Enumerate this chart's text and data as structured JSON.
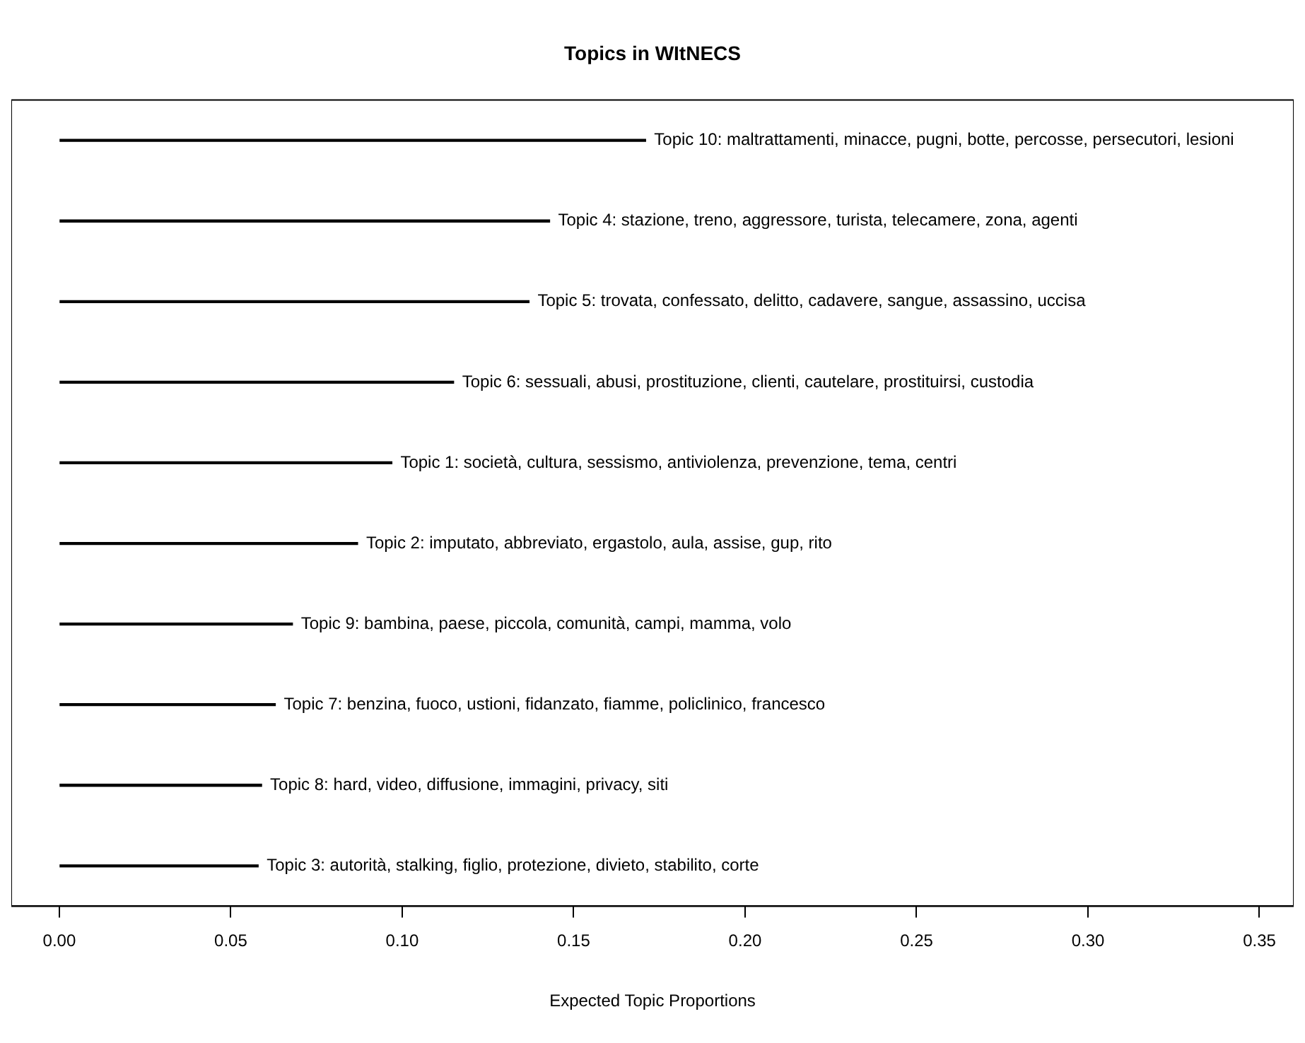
{
  "chart_data": {
    "type": "bar",
    "orientation": "horizontal",
    "title": "Topics in WItNECS",
    "xlabel": "Expected Topic Proportions",
    "categories": [
      "Topic 10: maltrattamenti, minacce, pugni, botte, percosse, persecutori, lesioni",
      "Topic 4: stazione, treno, aggressore, turista, telecamere, zona, agenti",
      "Topic 5: trovata, confessato, delitto, cadavere, sangue, assassino, uccisa",
      "Topic 6: sessuali, abusi, prostituzione, clienti, cautelare, prostituirsi, custodia",
      "Topic 1: società, cultura, sessismo, antiviolenza, prevenzione, tema, centri",
      "Topic 2: imputato, abbreviato, ergastolo, aula, assise, gup, rito",
      "Topic 9: bambina, paese, piccola, comunità, campi, mamma, volo",
      "Topic 7: benzina, fuoco, ustioni, fidanzato, fiamme, policlinico, francesco",
      "Topic 8: hard, video, diffusione, immagini, privacy, siti",
      "Topic 3: autorità, stalking, figlio, protezione, divieto, stabilito, corte"
    ],
    "values": [
      0.171,
      0.143,
      0.137,
      0.115,
      0.097,
      0.087,
      0.068,
      0.063,
      0.059,
      0.058
    ],
    "color": "#000000",
    "xlim": [
      -0.014,
      0.36
    ],
    "xticks": [
      {
        "value": 0,
        "label": "0.00"
      },
      {
        "value": 0.05,
        "label": "0.05"
      },
      {
        "value": 0.1,
        "label": "0.10"
      },
      {
        "value": 0.15,
        "label": "0.15"
      },
      {
        "value": 0.2,
        "label": "0.20"
      },
      {
        "value": 0.25,
        "label": "0.25"
      },
      {
        "value": 0.3,
        "label": "0.30"
      },
      {
        "value": 0.35,
        "label": "0.35"
      }
    ],
    "grid": false,
    "legend": false
  }
}
